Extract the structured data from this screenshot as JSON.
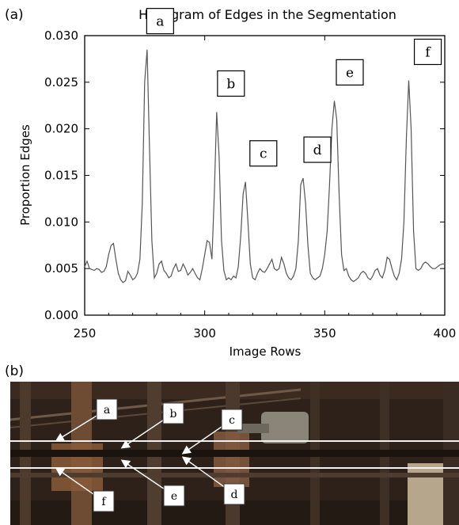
{
  "panel_a_label": "(a)",
  "panel_b_label": "(b)",
  "chart_data": {
    "type": "line",
    "title": "Histogram of Edges in the Segmentation",
    "xlabel": "Image Rows",
    "ylabel": "Proportion Edges",
    "xlim": [
      250,
      400
    ],
    "ylim": [
      0,
      0.03
    ],
    "xticks": [
      250,
      300,
      350,
      400
    ],
    "yticks": [
      "0.000",
      "0.005",
      "0.010",
      "0.015",
      "0.020",
      "0.025",
      "0.030"
    ],
    "grid": false,
    "line_color": "#555555",
    "x": [
      250,
      251,
      252,
      253,
      254,
      255,
      256,
      257,
      258,
      259,
      260,
      261,
      262,
      263,
      264,
      265,
      266,
      267,
      268,
      269,
      270,
      271,
      272,
      273,
      274,
      275,
      276,
      277,
      278,
      279,
      280,
      281,
      282,
      283,
      284,
      285,
      286,
      287,
      288,
      289,
      290,
      291,
      292,
      293,
      294,
      295,
      296,
      297,
      298,
      299,
      300,
      301,
      302,
      303,
      304,
      305,
      306,
      307,
      308,
      309,
      310,
      311,
      312,
      313,
      314,
      315,
      316,
      317,
      318,
      319,
      320,
      321,
      322,
      323,
      324,
      325,
      326,
      327,
      328,
      329,
      330,
      331,
      332,
      333,
      334,
      335,
      336,
      337,
      338,
      339,
      340,
      341,
      342,
      343,
      344,
      345,
      346,
      347,
      348,
      349,
      350,
      351,
      352,
      353,
      354,
      355,
      356,
      357,
      358,
      359,
      360,
      361,
      362,
      363,
      364,
      365,
      366,
      367,
      368,
      369,
      370,
      371,
      372,
      373,
      374,
      375,
      376,
      377,
      378,
      379,
      380,
      381,
      382,
      383,
      384,
      385,
      386,
      387,
      388,
      389,
      390,
      391,
      392,
      393,
      394,
      395,
      396,
      397,
      398,
      399,
      400
    ],
    "y": [
      0.0052,
      0.0058,
      0.005,
      0.0049,
      0.0048,
      0.005,
      0.0049,
      0.0046,
      0.0047,
      0.0052,
      0.0065,
      0.0075,
      0.0077,
      0.006,
      0.0045,
      0.0038,
      0.0035,
      0.0037,
      0.0047,
      0.0043,
      0.0038,
      0.004,
      0.0045,
      0.006,
      0.012,
      0.025,
      0.0285,
      0.018,
      0.008,
      0.004,
      0.0045,
      0.0055,
      0.0058,
      0.0048,
      0.0045,
      0.004,
      0.0042,
      0.005,
      0.0055,
      0.0047,
      0.0048,
      0.0055,
      0.005,
      0.0043,
      0.0046,
      0.005,
      0.0045,
      0.004,
      0.0038,
      0.005,
      0.0065,
      0.008,
      0.0078,
      0.006,
      0.013,
      0.0218,
      0.017,
      0.008,
      0.0048,
      0.0038,
      0.004,
      0.0038,
      0.0042,
      0.004,
      0.0052,
      0.0085,
      0.013,
      0.0143,
      0.01,
      0.0055,
      0.004,
      0.0038,
      0.0045,
      0.005,
      0.0047,
      0.0046,
      0.005,
      0.0055,
      0.006,
      0.005,
      0.0048,
      0.005,
      0.0062,
      0.0055,
      0.0045,
      0.004,
      0.0038,
      0.0042,
      0.005,
      0.008,
      0.014,
      0.0147,
      0.012,
      0.0075,
      0.0045,
      0.004,
      0.0038,
      0.004,
      0.0042,
      0.005,
      0.0065,
      0.009,
      0.014,
      0.02,
      0.023,
      0.021,
      0.013,
      0.0065,
      0.0048,
      0.005,
      0.0042,
      0.0038,
      0.0036,
      0.0038,
      0.004,
      0.0045,
      0.0047,
      0.0045,
      0.004,
      0.0038,
      0.0042,
      0.0048,
      0.005,
      0.0043,
      0.004,
      0.0048,
      0.0062,
      0.006,
      0.005,
      0.0042,
      0.0038,
      0.0045,
      0.006,
      0.01,
      0.019,
      0.0252,
      0.02,
      0.009,
      0.005,
      0.0048,
      0.005,
      0.0055,
      0.0057,
      0.0055,
      0.0052,
      0.005,
      0.005,
      0.0052,
      0.0054,
      0.0055,
      0.0055
    ],
    "annotations": [
      {
        "label": "a",
        "x": 275.5,
        "y": 0.0285
      },
      {
        "label": "b",
        "x": 305,
        "y": 0.0218
      },
      {
        "label": "c",
        "x": 318.5,
        "y": 0.0143
      },
      {
        "label": "d",
        "x": 341,
        "y": 0.0147
      },
      {
        "label": "e",
        "x": 354.5,
        "y": 0.023
      },
      {
        "label": "f",
        "x": 387,
        "y": 0.0252
      }
    ]
  },
  "photo_labels": [
    "a",
    "b",
    "c",
    "d",
    "e",
    "f"
  ]
}
